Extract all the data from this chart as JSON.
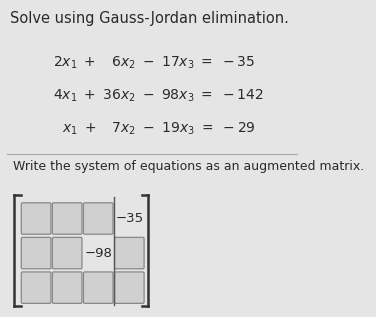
{
  "title": "Solve using Gauss-Jordan elimination.",
  "eq1": "2x₁ +    6x₂ −  17x₃ = −35",
  "eq2": "4x₁ + 36x₂ −  98x₃ = −142",
  "eq3": "  x₁ +    7x₂ −  19x₃ = −29",
  "subtitle": "Write the system of equations as an augmented matrix.",
  "known_r0c3": "−35",
  "known_r1c2": "−98",
  "bg_color": "#e5e5e5",
  "text_color": "#2a2a2a",
  "box_edge": "#888888",
  "box_face": "#d0d0d0",
  "bracket_color": "#333333",
  "sep_color": "#555555",
  "line_color": "#aaaaaa"
}
